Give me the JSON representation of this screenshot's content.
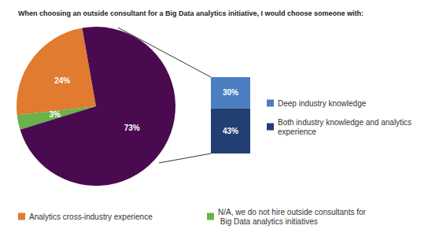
{
  "chart_data": [
    {
      "type": "pie",
      "title": "When choosing an outside consultant for a Big Data analytics initiative, I would choose someone with:",
      "categories": [
        "Analytics cross-industry experience",
        "N/A, we do not hire outside consultants for Big Data analytics initiatives",
        null
      ],
      "values": [
        24,
        3,
        73
      ],
      "value_labels": [
        "24%",
        "3%",
        "73%"
      ],
      "colors": [
        "#e07b30",
        "#6ab24a",
        "#4a0a50"
      ],
      "data_labels": true,
      "legend": "bottom"
    },
    {
      "type": "bar",
      "stacked": true,
      "categories": [
        null
      ],
      "series": [
        {
          "name": "Deep industry knowledge",
          "color": "#4a7ec0",
          "values": [
            30
          ],
          "value_labels": [
            "30%"
          ]
        },
        {
          "name": "Both industry knowledge and analytics experience",
          "color": "#213f73",
          "values": [
            43
          ],
          "value_labels": [
            "43%"
          ]
        }
      ],
      "ylim": [
        0,
        73
      ],
      "yticks": [
        0,
        73
      ],
      "grid": false,
      "tick_labels": false,
      "data_labels": true,
      "legend": "right"
    }
  ]
}
